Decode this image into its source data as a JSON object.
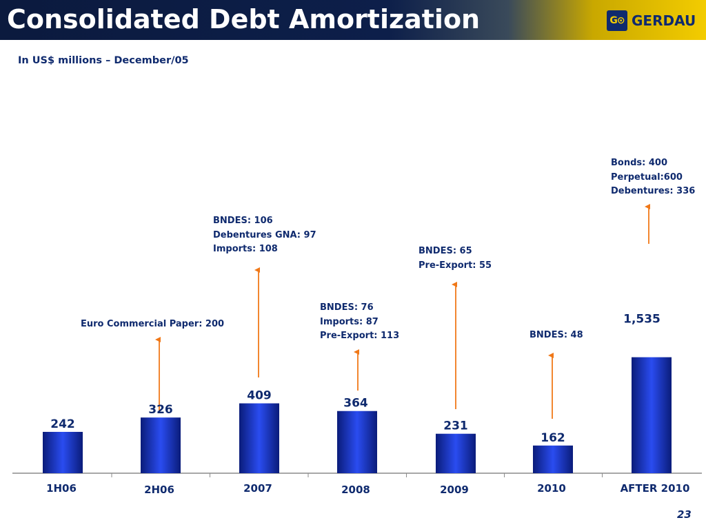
{
  "header": {
    "title": "Consolidated Debt Amortization",
    "logo_mark": "G⊙",
    "logo_text": "GERDAU"
  },
  "subtitle": "In US$ millions – December/05",
  "page_number": "23",
  "colors": {
    "bar": "#2244dd",
    "bar_edge": "#0a1c7a",
    "arrow": "#f07818",
    "text": "#0f2a6e"
  },
  "chart_data": {
    "type": "bar",
    "title": "",
    "xlabel": "",
    "ylabel": "",
    "categories": [
      "1H06",
      "2H06",
      "2007",
      "2008",
      "2009",
      "2010",
      "AFTER 2010"
    ],
    "values": [
      242,
      326,
      409,
      364,
      231,
      162,
      1535
    ],
    "value_labels": [
      "242",
      "326",
      "409",
      "364",
      "231",
      "162",
      "1,535"
    ],
    "grid": false,
    "annotations": [
      {
        "category": "2H06",
        "lines": [
          "Euro Commercial Paper: 200"
        ]
      },
      {
        "category": "2007",
        "lines": [
          "BNDES: 106",
          "Debentures GNA: 97",
          "Imports: 108"
        ]
      },
      {
        "category": "2008",
        "lines": [
          "BNDES: 76",
          "Imports: 87",
          "Pre-Export: 113"
        ]
      },
      {
        "category": "2009",
        "lines": [
          "BNDES: 65",
          "Pre-Export: 55"
        ]
      },
      {
        "category": "2010",
        "lines": [
          "BNDES: 48"
        ]
      },
      {
        "category": "AFTER 2010",
        "lines": [
          "Bonds: 400",
          "Perpetual:600",
          "Debentures: 336"
        ]
      }
    ]
  }
}
